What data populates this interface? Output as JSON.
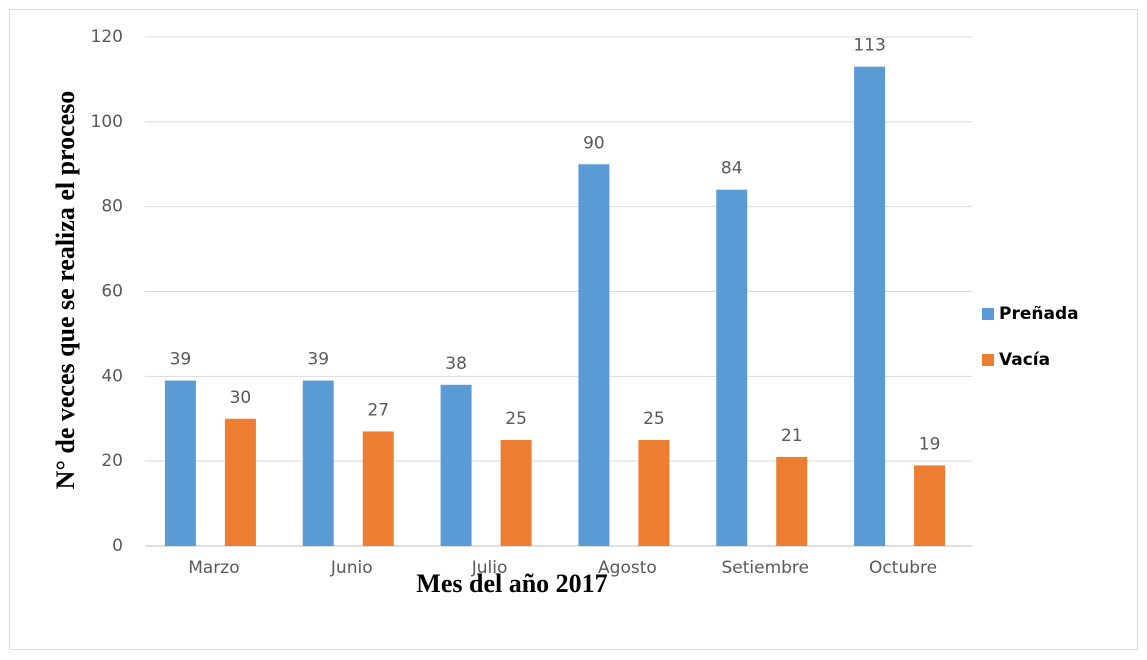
{
  "chart_data": {
    "type": "bar",
    "x_label": "Mes del año 2017",
    "y_label": "N° de veces que se realiza el proceso",
    "categories": [
      "Marzo",
      "Junio",
      "Julio",
      "Agosto",
      "Setiembre",
      "Octubre"
    ],
    "series": [
      {
        "name": "Preñada",
        "color": "#5b9bd5",
        "values": [
          39,
          39,
          38,
          90,
          84,
          113
        ]
      },
      {
        "name": "Vacía",
        "color": "#ed7d31",
        "values": [
          30,
          27,
          25,
          25,
          21,
          19
        ]
      }
    ],
    "ylim": [
      0,
      120
    ],
    "yticks": [
      0,
      20,
      40,
      60,
      80,
      100,
      120
    ],
    "grid": true,
    "legend": "right"
  }
}
